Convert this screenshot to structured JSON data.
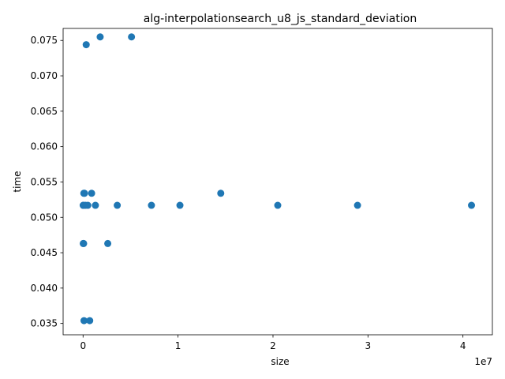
{
  "chart_data": {
    "type": "scatter",
    "title": "alg-interpolationsearch_u8_js_standard_deviation",
    "xlabel": "size",
    "ylabel": "time",
    "x_offset_label": "1e7",
    "xlim": [
      -2100000,
      43100000
    ],
    "ylim": [
      0.0334,
      0.0767
    ],
    "grid": false,
    "x_ticks": [
      {
        "value": 0,
        "label": "0"
      },
      {
        "value": 10000000,
        "label": "1"
      },
      {
        "value": 20000000,
        "label": "2"
      },
      {
        "value": 30000000,
        "label": "3"
      },
      {
        "value": 40000000,
        "label": "4"
      }
    ],
    "y_ticks": [
      {
        "value": 0.035,
        "label": "0.035"
      },
      {
        "value": 0.04,
        "label": "0.040"
      },
      {
        "value": 0.045,
        "label": "0.045"
      },
      {
        "value": 0.05,
        "label": "0.050"
      },
      {
        "value": 0.055,
        "label": "0.055"
      },
      {
        "value": 0.06,
        "label": "0.060"
      },
      {
        "value": 0.065,
        "label": "0.065"
      },
      {
        "value": 0.07,
        "label": "0.070"
      },
      {
        "value": 0.075,
        "label": "0.075"
      }
    ],
    "series": [
      {
        "color": "#1f77b4",
        "points": [
          {
            "x": 10000,
            "y": 0.0517
          },
          {
            "x": 20000,
            "y": 0.0463
          },
          {
            "x": 40000,
            "y": 0.0517
          },
          {
            "x": 60000,
            "y": 0.0463
          },
          {
            "x": 80000,
            "y": 0.0534
          },
          {
            "x": 100000,
            "y": 0.0354
          },
          {
            "x": 150000,
            "y": 0.0534
          },
          {
            "x": 250000,
            "y": 0.0517
          },
          {
            "x": 330000,
            "y": 0.0744
          },
          {
            "x": 500000,
            "y": 0.0517
          },
          {
            "x": 700000,
            "y": 0.0354
          },
          {
            "x": 900000,
            "y": 0.0534
          },
          {
            "x": 1300000,
            "y": 0.0517
          },
          {
            "x": 1800000,
            "y": 0.0755
          },
          {
            "x": 2600000,
            "y": 0.0463
          },
          {
            "x": 3600000,
            "y": 0.0517
          },
          {
            "x": 5100000,
            "y": 0.0755
          },
          {
            "x": 7200000,
            "y": 0.0517
          },
          {
            "x": 10200000,
            "y": 0.0517
          },
          {
            "x": 14500000,
            "y": 0.0534
          },
          {
            "x": 20500000,
            "y": 0.0517
          },
          {
            "x": 28900000,
            "y": 0.0517
          },
          {
            "x": 40900000,
            "y": 0.0517
          }
        ]
      }
    ]
  }
}
